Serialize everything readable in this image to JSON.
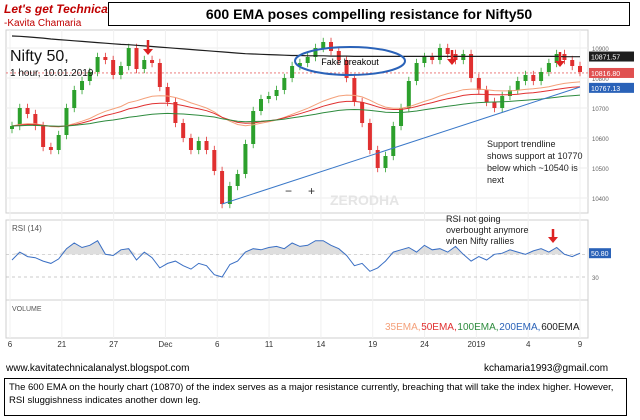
{
  "header": {
    "brand": "Let's get Technical",
    "author": "-Kavita Chamaria",
    "title": "600 EMA poses compelling resistance for Nifty50",
    "symbol": "Nifty 50,",
    "timeframe": "1 hour, 10.01.2019"
  },
  "footer": {
    "website": "www.kavitatechnicalanalyst.blogspot.com",
    "email": "kchamaria1993@gmail.com",
    "note": "The 600 EMA on the hourly chart (10870) of the index serves as a major resistance currently, breaching that will take the index higher. However, RSI sluggishness indicates another down leg."
  },
  "chart_data": {
    "type": "line",
    "price_panel": {
      "yticks": [
        10400,
        10500,
        10600,
        10700,
        10800,
        10900
      ],
      "ylim": [
        10350,
        10960
      ],
      "price_labels": [
        {
          "text": "10871.57",
          "value": 10871.57,
          "color": "#1e1e1e"
        },
        {
          "text": "10816.80",
          "value": 10816.8,
          "color": "#e05050"
        },
        {
          "text": "10767.13",
          "value": 10767.13,
          "color": "#2a62b8"
        }
      ],
      "xticks": [
        "6",
        "21",
        "27",
        "Dec",
        "6",
        "11",
        "14",
        "19",
        "24",
        "2019",
        "4",
        "9"
      ],
      "series": {
        "close": [
          10640,
          10700,
          10680,
          10640,
          10570,
          10560,
          10610,
          10700,
          10760,
          10790,
          10820,
          10870,
          10860,
          10810,
          10840,
          10900,
          10830,
          10860,
          10850,
          10770,
          10720,
          10650,
          10600,
          10560,
          10590,
          10560,
          10490,
          10380,
          10440,
          10480,
          10580,
          10690,
          10730,
          10740,
          10760,
          10800,
          10840,
          10850,
          10870,
          10900,
          10920,
          10890,
          10860,
          10800,
          10720,
          10650,
          10560,
          10500,
          10540,
          10640,
          10700,
          10790,
          10850,
          10870,
          10860,
          10900,
          10880,
          10860,
          10880,
          10800,
          10760,
          10720,
          10700,
          10740,
          10760,
          10790,
          10810,
          10790,
          10820,
          10850,
          10880,
          10860,
          10840,
          10820
        ],
        "ema35": [
          10640,
          10645,
          10648,
          10647,
          10643,
          10638,
          10637,
          10641,
          10648,
          10656,
          10665,
          10678,
          10689,
          10697,
          10705,
          10718,
          10724,
          10732,
          10739,
          10741,
          10740,
          10735,
          10727,
          10717,
          10709,
          10700,
          10687,
          10669,
          10656,
          10645,
          10641,
          10644,
          10649,
          10654,
          10660,
          10669,
          10679,
          10689,
          10699,
          10711,
          10723,
          10732,
          10740,
          10743,
          10742,
          10737,
          10726,
          10713,
          10703,
          10699,
          10699,
          10704,
          10713,
          10722,
          10730,
          10740,
          10748,
          10754,
          10761,
          10763,
          10763,
          10761,
          10758,
          10757,
          10757,
          10759,
          10762,
          10764,
          10767,
          10771,
          10777,
          10782,
          10785,
          10787
        ],
        "ema50": [
          10640,
          10643,
          10645,
          10645,
          10642,
          10639,
          10638,
          10640,
          10644,
          10650,
          10657,
          10666,
          10675,
          10681,
          10688,
          10697,
          10702,
          10709,
          10714,
          10716,
          10716,
          10713,
          10708,
          10702,
          10697,
          10691,
          10682,
          10669,
          10660,
          10652,
          10649,
          10650,
          10654,
          10657,
          10661,
          10667,
          10674,
          10681,
          10689,
          10697,
          10706,
          10713,
          10719,
          10722,
          10722,
          10719,
          10712,
          10704,
          10697,
          10695,
          10695,
          10699,
          10705,
          10712,
          10718,
          10725,
          10731,
          10736,
          10742,
          10745,
          10746,
          10745,
          10744,
          10744,
          10744,
          10746,
          10749,
          10751,
          10754,
          10758,
          10762,
          10766,
          10769,
          10771
        ],
        "ema100": [
          10640,
          10641,
          10642,
          10642,
          10641,
          10640,
          10639,
          10640,
          10642,
          10645,
          10648,
          10653,
          10657,
          10660,
          10664,
          10669,
          10672,
          10676,
          10679,
          10681,
          10682,
          10681,
          10680,
          10678,
          10676,
          10673,
          10670,
          10664,
          10660,
          10656,
          10654,
          10655,
          10656,
          10658,
          10660,
          10663,
          10667,
          10671,
          10675,
          10679,
          10684,
          10688,
          10692,
          10694,
          10695,
          10694,
          10692,
          10689,
          10686,
          10685,
          10685,
          10687,
          10690,
          10694,
          10698,
          10702,
          10706,
          10709,
          10713,
          10716,
          10718,
          10719,
          10720,
          10721,
          10722,
          10724,
          10726,
          10728,
          10730,
          10733,
          10736,
          10739,
          10741,
          10743
        ],
        "ema600": [
          10940,
          10939,
          10937,
          10935,
          10933,
          10930,
          10928,
          10926,
          10924,
          10922,
          10920,
          10918,
          10916,
          10914,
          10912,
          10911,
          10909,
          10907,
          10905,
          10903,
          10901,
          10899,
          10897,
          10895,
          10893,
          10891,
          10889,
          10887,
          10885,
          10883,
          10881,
          10880,
          10879,
          10878,
          10877,
          10876,
          10875,
          10875,
          10874,
          10874,
          10874,
          10873,
          10873,
          10873,
          10872,
          10872,
          10872,
          10872,
          10872,
          10872,
          10872,
          10872,
          10872,
          10872,
          10872,
          10872,
          10872,
          10872,
          10872,
          10872,
          10872,
          10872,
          10872,
          10872,
          10872,
          10872,
          10872,
          10872,
          10872,
          10872,
          10872,
          10871,
          10871,
          10871
        ],
        "trendline": [
          [
            27,
            10380
          ],
          [
            73,
            10770
          ]
        ]
      },
      "annotations": [
        {
          "text": "Fake breakout"
        },
        {
          "lines": [
            "Support trendline",
            "shows support at 10770",
            "below which ~10540 is",
            "next"
          ]
        }
      ],
      "watermark": "ZERODHA",
      "minus_plus": [
        "−",
        "+"
      ]
    },
    "rsi_panel": {
      "label": "RSI (14)",
      "yticks": [
        30,
        50
      ],
      "value_label": "50.80",
      "note": [
        "RSI not going",
        "overbought anymore",
        "when Nifty rallies"
      ],
      "values": [
        45,
        52,
        48,
        47,
        44,
        42,
        46,
        55,
        60,
        56,
        58,
        62,
        50,
        49,
        54,
        55,
        45,
        52,
        47,
        38,
        42,
        44,
        40,
        37,
        42,
        40,
        32,
        30,
        41,
        44,
        52,
        55,
        54,
        56,
        57,
        55,
        60,
        57,
        58,
        62,
        62,
        58,
        55,
        49,
        40,
        42,
        35,
        38,
        44,
        52,
        54,
        56,
        52,
        58,
        54,
        55,
        52,
        57,
        50,
        44,
        48,
        45,
        50,
        51,
        54,
        52,
        50,
        53,
        55,
        52,
        56,
        50,
        48,
        51
      ]
    },
    "volume_panel": {
      "label": "VOLUME",
      "legend": [
        {
          "text": "35EMA,",
          "color": "#f4a07a"
        },
        {
          "text": "50EMA,",
          "color": "#e03030"
        },
        {
          "text": "100EMA,",
          "color": "#2e8b3e"
        },
        {
          "text": "200EMA,",
          "color": "#2a62b8"
        },
        {
          "text": "600EMA",
          "color": "#1e1e1e"
        }
      ]
    }
  }
}
